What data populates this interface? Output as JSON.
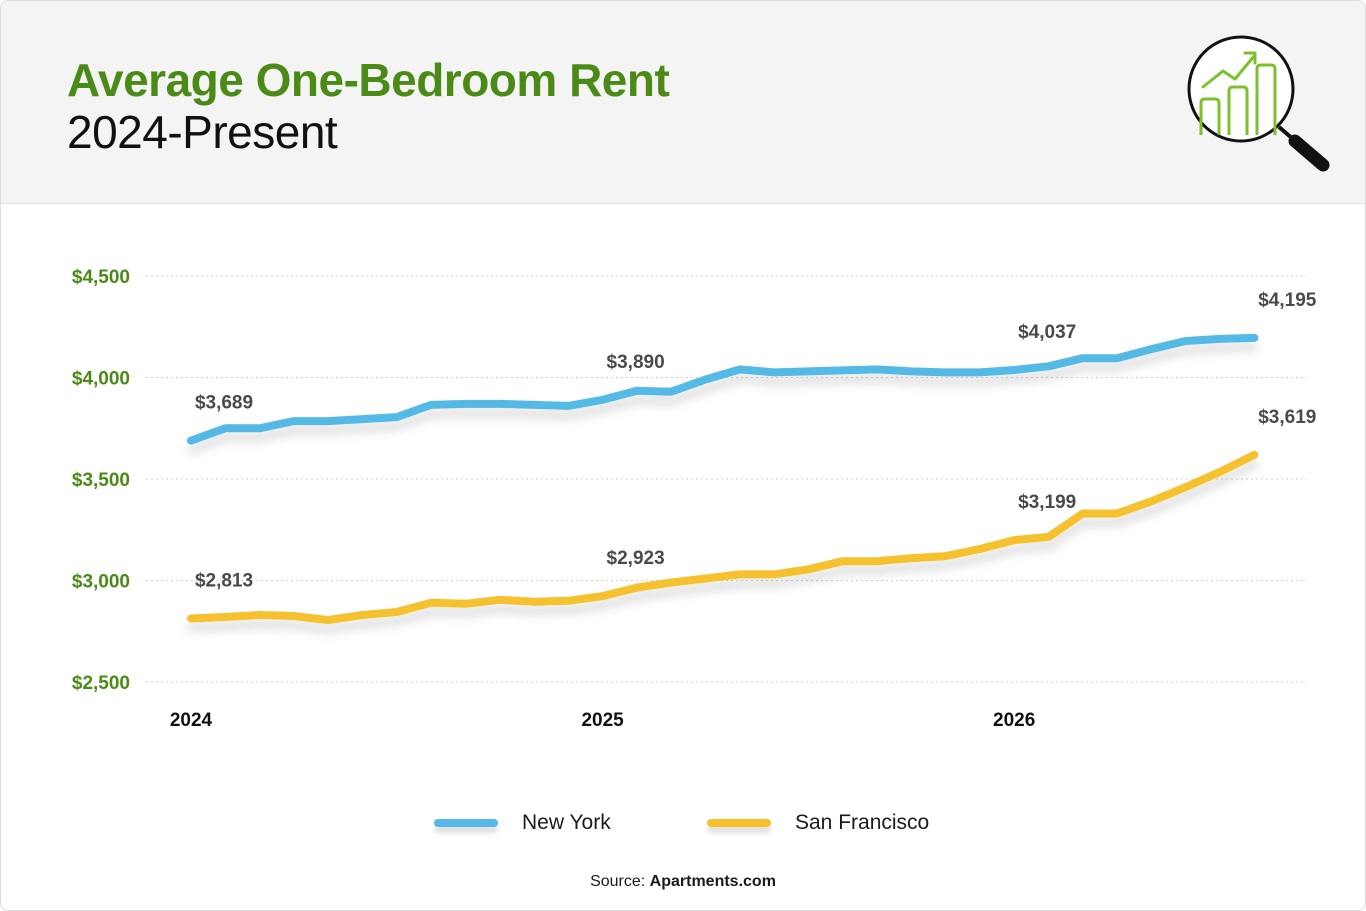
{
  "header": {
    "title": "Average One-Bedroom Rent",
    "subtitle": "2024-Present"
  },
  "icons": {
    "header_icon": "magnifier-chart-icon"
  },
  "colors": {
    "title_green": "#4c8a17",
    "axis_label_green": "#4c8a17",
    "new_york": "#54b9e6",
    "san_francisco": "#f6c12d",
    "icon_green": "#7cc12c",
    "gridline": "#cfcfcf"
  },
  "chart_data": {
    "type": "line",
    "title": "Average One-Bedroom Rent",
    "subtitle": "2024-Present",
    "xlabel": "",
    "ylabel": "",
    "ylim": [
      2500,
      4500
    ],
    "y_ticks": [
      4500,
      4000,
      3500,
      3000,
      2500
    ],
    "y_tick_labels": [
      "$4,500",
      "$4,000",
      "$3,500",
      "$3,000",
      "$2,500"
    ],
    "x_ticks": [
      {
        "index": 0,
        "label": "2024"
      },
      {
        "index": 12,
        "label": "2025"
      },
      {
        "index": 24,
        "label": "2026"
      }
    ],
    "grid": true,
    "legend_placement": "bottom-center",
    "series": [
      {
        "name": "New York",
        "color": "#54b9e6",
        "values": [
          3689,
          3750,
          3750,
          3785,
          3785,
          3795,
          3805,
          3865,
          3870,
          3870,
          3865,
          3860,
          3890,
          3935,
          3930,
          3990,
          4040,
          4025,
          4030,
          4035,
          4040,
          4030,
          4025,
          4025,
          4037,
          4055,
          4095,
          4095,
          4140,
          4180,
          4190,
          4195
        ]
      },
      {
        "name": "San Francisco",
        "color": "#f6c12d",
        "values": [
          2813,
          2820,
          2830,
          2825,
          2805,
          2830,
          2845,
          2890,
          2885,
          2905,
          2895,
          2900,
          2923,
          2965,
          2990,
          3010,
          3030,
          3030,
          3055,
          3095,
          3095,
          3110,
          3120,
          3155,
          3199,
          3215,
          3330,
          3330,
          3390,
          3460,
          3535,
          3619
        ]
      }
    ],
    "data_labels": [
      {
        "series": 0,
        "index": 0,
        "text": "$3,689"
      },
      {
        "series": 0,
        "index": 12,
        "text": "$3,890"
      },
      {
        "series": 0,
        "index": 24,
        "text": "$4,037"
      },
      {
        "series": 0,
        "index": 31,
        "text": "$4,195"
      },
      {
        "series": 1,
        "index": 0,
        "text": "$2,813"
      },
      {
        "series": 1,
        "index": 12,
        "text": "$2,923"
      },
      {
        "series": 1,
        "index": 24,
        "text": "$3,199"
      },
      {
        "series": 1,
        "index": 31,
        "text": "$3,619"
      }
    ]
  },
  "source": {
    "prefix": "Source: ",
    "name": "Apartments.com"
  }
}
